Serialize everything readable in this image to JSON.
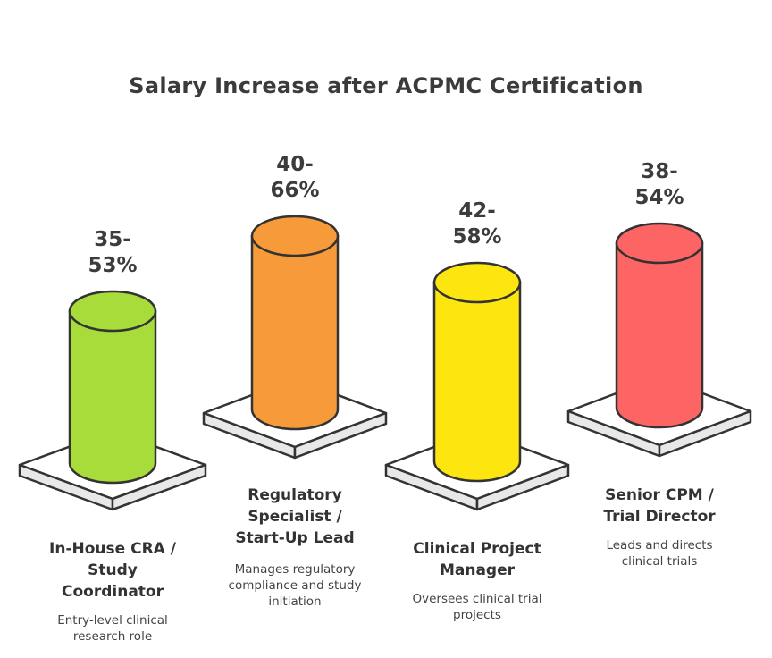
{
  "title": "Salary Increase after ACPMC Certification",
  "items": [
    {
      "range": "35-\n53%",
      "role": "In-House CRA /\nStudy\nCoordinator",
      "description": "Entry-level clinical\nresearch role",
      "color": "#a8dc3a"
    },
    {
      "range": "40-\n66%",
      "role": "Regulatory\nSpecialist /\nStart-Up Lead",
      "description": "Manages regulatory\ncompliance and study\ninitiation",
      "color": "#f79a3a"
    },
    {
      "range": "42-\n58%",
      "role": "Clinical Project\nManager",
      "description": "Oversees clinical trial\nprojects",
      "color": "#fde50f"
    },
    {
      "range": "38-\n54%",
      "role": "Senior CPM /\nTrial Director",
      "description": "Leads and directs\nclinical trials",
      "color": "#fd6464"
    }
  ],
  "colors": {
    "outline": "#333333",
    "base_fill": "#ffffff",
    "base_side": "#e8e8e8"
  }
}
